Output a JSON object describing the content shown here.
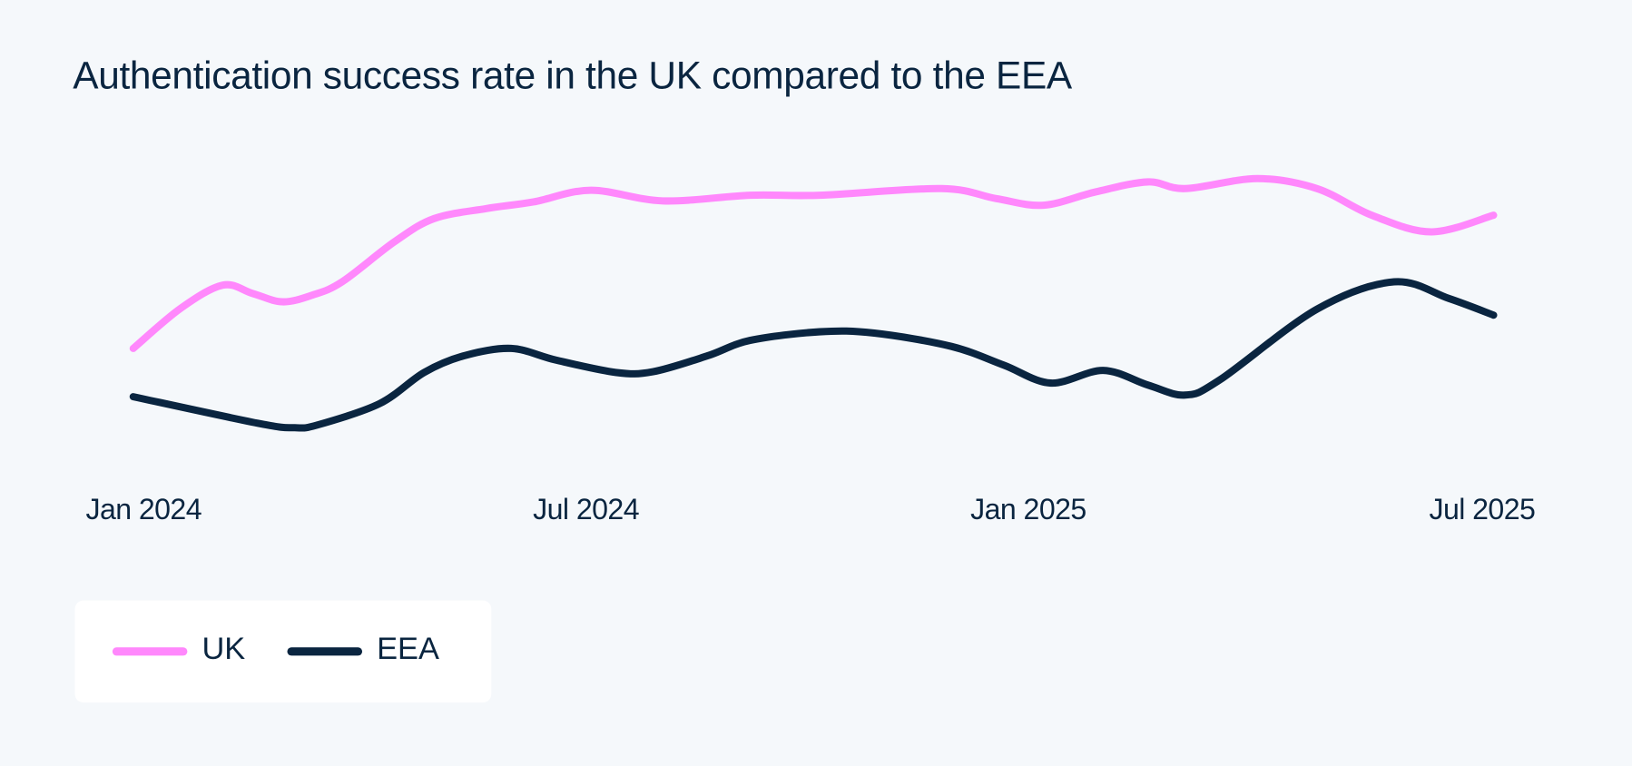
{
  "chart_data": {
    "type": "line",
    "title": "Authentication success rate in the UK compared to the EEA",
    "xlabel": "",
    "ylabel": "",
    "x_ticks": [
      "Jan 2024",
      "Jul 2024",
      "Jan 2025",
      "Jul 2025"
    ],
    "xlim": [
      "2024-01-01",
      "2025-07-01"
    ],
    "ylim": [
      0,
      100
    ],
    "y_axis_shown": false,
    "grid": false,
    "legend_position": "bottom-left",
    "series": [
      {
        "name": "UK",
        "color": "#ff88fc",
        "x": [
          "2024-01-01",
          "2024-01-20",
          "2024-02-06",
          "2024-02-18",
          "2024-03-01",
          "2024-03-13",
          "2024-03-25",
          "2024-04-15",
          "2024-05-01",
          "2024-05-22",
          "2024-06-10",
          "2024-07-03",
          "2024-08-01",
          "2024-09-05",
          "2024-10-03",
          "2024-11-21",
          "2024-12-13",
          "2025-01-01",
          "2025-01-22",
          "2025-02-12",
          "2025-02-27",
          "2025-03-28",
          "2025-04-21",
          "2025-05-13",
          "2025-06-06",
          "2025-07-01"
        ],
        "y": [
          36,
          48,
          55,
          52.5,
          50,
          52,
          56,
          68,
          75,
          78,
          80,
          83.5,
          80.3,
          82,
          82,
          84,
          81,
          79,
          83,
          86,
          84,
          87,
          84,
          76,
          71,
          76
        ]
      },
      {
        "name": "EEA",
        "color": "#0a2540",
        "x": [
          "2024-01-01",
          "2024-02-21",
          "2024-03-06",
          "2024-03-15",
          "2024-04-09",
          "2024-04-27",
          "2024-05-13",
          "2024-06-01",
          "2024-06-19",
          "2024-07-13",
          "2024-07-28",
          "2024-08-19",
          "2024-09-05",
          "2024-10-03",
          "2024-10-25",
          "2024-11-25",
          "2024-12-16",
          "2025-01-04",
          "2025-01-25",
          "2025-02-12",
          "2025-02-27",
          "2025-03-13",
          "2025-04-21",
          "2025-05-22",
          "2025-06-13",
          "2025-07-01"
        ],
        "y": [
          21.5,
          13.4,
          12.2,
          13,
          19.4,
          28.8,
          33.8,
          36,
          32.5,
          28.8,
          29,
          33.8,
          38.4,
          41,
          40.6,
          36.6,
          31,
          25.6,
          29.4,
          25,
          22,
          26.6,
          47.8,
          56,
          51,
          46
        ]
      }
    ]
  }
}
